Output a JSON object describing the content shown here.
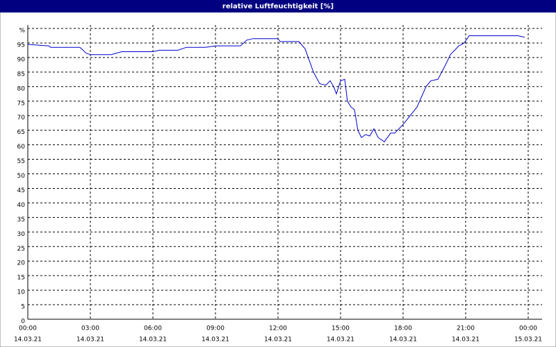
{
  "chart_data": {
    "type": "line",
    "title": "relative Luftfeuchtigkeit [%]",
    "x": [
      0,
      1,
      1.1,
      2.5,
      2.8,
      3,
      4,
      4.5,
      6,
      6.3,
      7.2,
      7.6,
      8.5,
      9,
      10.2,
      10.5,
      10.8,
      12,
      12.1,
      13,
      13.3,
      13.7,
      14,
      14.3,
      14.5,
      14.67,
      14.8,
      15,
      15.2,
      15.33,
      15.5,
      15.67,
      15.83,
      16,
      16.2,
      16.4,
      16.6,
      16.8,
      17.1,
      17.4,
      17.6,
      17.8,
      18,
      18.67,
      19.1,
      19.33,
      19.67,
      20,
      20.27,
      20.67,
      20.93,
      21.17,
      23.5,
      23.83
    ],
    "series": [
      {
        "name": "relative Luftfeuchtigkeit",
        "color": "#0000cc",
        "values": [
          94.5,
          94,
          93.5,
          93.5,
          91.5,
          91,
          91,
          92,
          92,
          92.5,
          92.5,
          93.5,
          93.5,
          94,
          94,
          96,
          96.5,
          96.5,
          95.5,
          95.5,
          93,
          85,
          81,
          80.5,
          82,
          80,
          77.5,
          82,
          82.5,
          75,
          73,
          72,
          65,
          62.5,
          63.5,
          63,
          65.5,
          62.5,
          61,
          64,
          64,
          65.5,
          67,
          73,
          80,
          82,
          82.5,
          87,
          91,
          94,
          95,
          97.5,
          97.5,
          97
        ]
      }
    ],
    "xlim": [
      0,
      24
    ],
    "xticks": [
      {
        "value": 0,
        "label": "00:00"
      },
      {
        "value": 3,
        "label": "03:00"
      },
      {
        "value": 6,
        "label": "06:00"
      },
      {
        "value": 9,
        "label": "09:00"
      },
      {
        "value": 12,
        "label": "12:00"
      },
      {
        "value": 15,
        "label": "15:00"
      },
      {
        "value": 18,
        "label": "18:00"
      },
      {
        "value": 21,
        "label": "21:00"
      },
      {
        "value": 24,
        "label": "00:00"
      }
    ],
    "xtick_dates": [
      "14.03.21",
      "14.03.21",
      "14.03.21",
      "14.03.21",
      "14.03.21",
      "14.03.21",
      "14.03.21",
      "14.03.21",
      "15.03.21"
    ],
    "ylim": [
      0,
      100
    ],
    "yticks": [
      0,
      5,
      10,
      15,
      20,
      25,
      30,
      35,
      40,
      45,
      50,
      55,
      60,
      65,
      70,
      75,
      80,
      85,
      90,
      95,
      {
        "value": 100,
        "label": "%"
      }
    ],
    "grid": true
  }
}
